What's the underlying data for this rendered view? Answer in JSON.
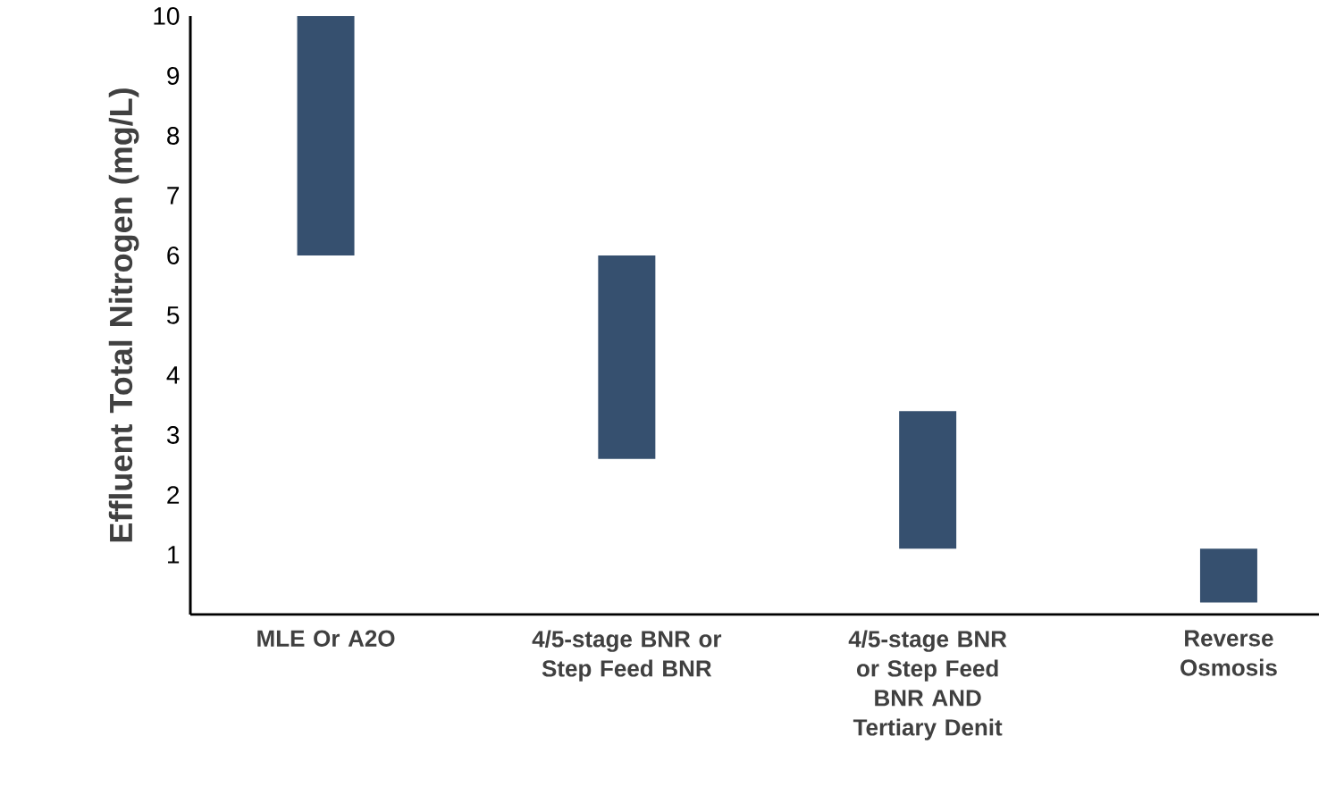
{
  "chart_data": {
    "type": "bar",
    "ylabel": "Effluent Total Nitrogen (mg/L)",
    "categories": [
      "MLE Or A2O",
      "4/5-stage BNR or Step Feed BNR",
      "4/5-stage BNR or Step Feed BNR AND Tertiary Denit",
      "Reverse Osmosis"
    ],
    "base": [
      6,
      2.6,
      1.1,
      0.2
    ],
    "values": [
      4,
      3.4,
      2.3,
      0.9
    ],
    "color": "#36506f",
    "ylim": [
      0,
      10
    ],
    "yticks": [
      1,
      2,
      3,
      4,
      5,
      6,
      7,
      8,
      9,
      10
    ]
  }
}
